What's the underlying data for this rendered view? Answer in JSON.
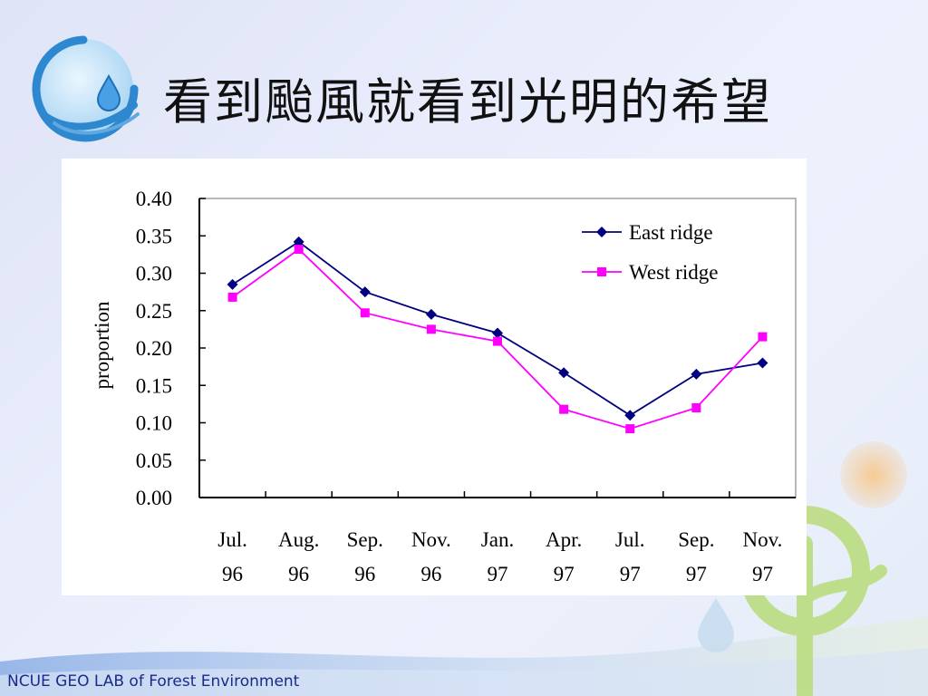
{
  "slide": {
    "title": "看到颱風就看到光明的希望",
    "footer": "NCUE GEO LAB of Forest Environment"
  },
  "icons": [
    "water-drop-logo-icon",
    "tree-sprout-decoration-icon"
  ],
  "colors": {
    "background": "#e4e8f8",
    "east_ridge": "#000080",
    "west_ridge": "#ff00ff",
    "footer_text": "#1a2a8a"
  },
  "chart_data": {
    "type": "line",
    "title": "",
    "xlabel": "",
    "ylabel": "proportion",
    "ylim": [
      0,
      0.4
    ],
    "yticks": [
      "0.00",
      "0.05",
      "0.10",
      "0.15",
      "0.20",
      "0.25",
      "0.30",
      "0.35",
      "0.40"
    ],
    "categories": [
      [
        "Jul.",
        "96"
      ],
      [
        "Aug.",
        "96"
      ],
      [
        "Sep.",
        "96"
      ],
      [
        "Nov.",
        "96"
      ],
      [
        "Jan.",
        "97"
      ],
      [
        "Apr.",
        "97"
      ],
      [
        "Jul.",
        "97"
      ],
      [
        "Sep.",
        "97"
      ],
      [
        "Nov.",
        "97"
      ]
    ],
    "series": [
      {
        "name": "East ridge",
        "marker": "diamond",
        "color": "#000080",
        "values": [
          0.285,
          0.342,
          0.275,
          0.245,
          0.22,
          0.167,
          0.11,
          0.165,
          0.18
        ]
      },
      {
        "name": "West ridge",
        "marker": "square",
        "color": "#ff00ff",
        "values": [
          0.268,
          0.332,
          0.247,
          0.225,
          0.209,
          0.118,
          0.092,
          0.12,
          0.215
        ]
      }
    ],
    "grid": false,
    "legend_position": "top-right"
  }
}
